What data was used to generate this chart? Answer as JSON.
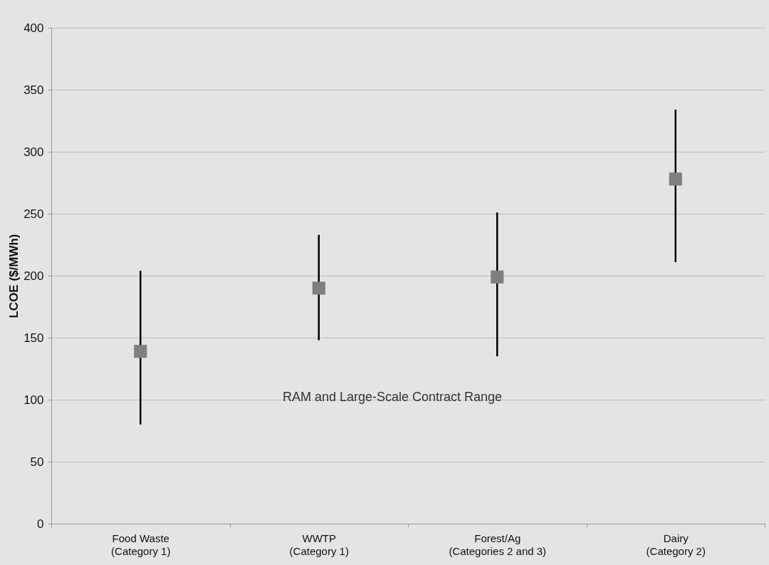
{
  "chart_data": {
    "type": "scatter",
    "ylabel": "LCOE ($/MWh)",
    "categories": [
      "Food Waste\n(Category 1)",
      "WWTP\n(Category 1)",
      "Forest/Ag\n(Categories 2 and 3)",
      "Dairy\n(Category 2)"
    ],
    "series": [
      {
        "color": "#7f7f7f",
        "values": [
          139,
          190,
          199,
          278
        ],
        "errors": [
          [
            80,
            204
          ],
          [
            148,
            233
          ],
          [
            135,
            251
          ],
          [
            211,
            334
          ]
        ]
      }
    ],
    "marker": "square",
    "ylim": [
      0,
      400
    ],
    "yticks": [
      0,
      50,
      100,
      150,
      200,
      250,
      300,
      350,
      400
    ],
    "grid": "y",
    "annotations": [
      "RAM and Large-Scale Contract Range"
    ]
  }
}
